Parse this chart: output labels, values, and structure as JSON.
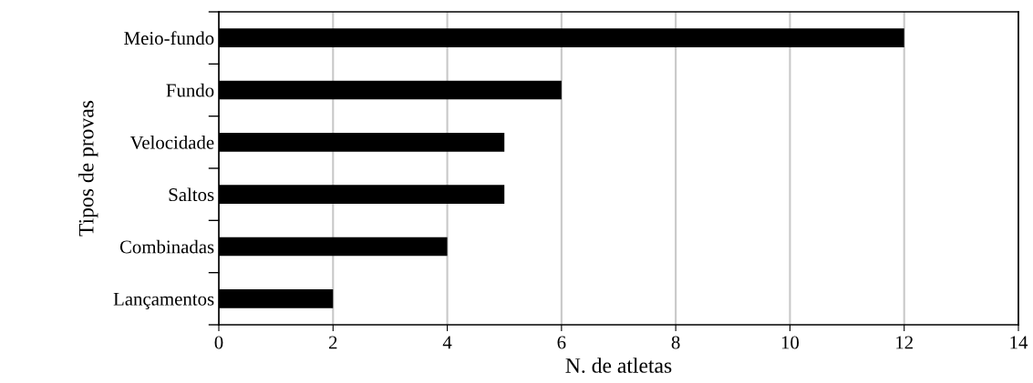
{
  "chart_data": {
    "type": "bar",
    "orientation": "horizontal",
    "categories": [
      "Meio-fundo",
      "Fundo",
      "Velocidade",
      "Saltos",
      "Combinadas",
      "Lançamentos"
    ],
    "values": [
      12,
      6,
      5,
      5,
      4,
      2
    ],
    "color": "#000000",
    "xlim": [
      0,
      14
    ],
    "xticks": [
      0,
      2,
      4,
      6,
      8,
      10,
      12,
      14
    ],
    "grid": "x",
    "xlabel": "N. de atletas",
    "ylabel": "Tipos de provas"
  }
}
